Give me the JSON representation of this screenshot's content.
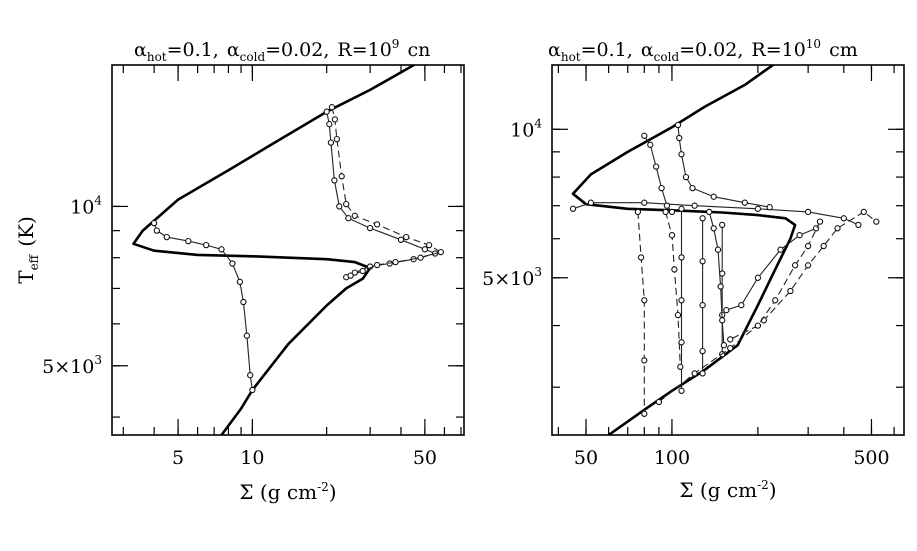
{
  "chart_data": [
    {
      "type": "line",
      "title": {
        "main": "α",
        "s1": "hot",
        "t1": "=0.1,",
        "g2": "α",
        "s2": "cold",
        "t2": "=0.02,",
        "t3": "R=10",
        "exp": "9",
        "unit": "cn"
      },
      "xlabel": "Σ (g cm",
      "xlabel_exp": "-2",
      "xlabel_close": ")",
      "ylabel": "T",
      "ylabel_sub": "eff",
      "ylabel_unit": "(K)",
      "xscale": "log",
      "yscale": "log",
      "xlim": [
        2.7,
        72
      ],
      "ylim": [
        3700,
        18500
      ],
      "xticks": [
        {
          "value": 5,
          "label": "5"
        },
        {
          "value": 10,
          "label": "10"
        },
        {
          "value": 50,
          "label": "50"
        }
      ],
      "yticks": [
        {
          "value": 10000,
          "label": "10",
          "exp": "4"
        },
        {
          "value": 5000,
          "label": "5×10",
          "exp": "3"
        }
      ],
      "series": [
        {
          "style": "thick",
          "points": [
            [
              7.5,
              3700
            ],
            [
              9,
              4150
            ],
            [
              10,
              4500
            ],
            [
              14,
              5500
            ],
            [
              20,
              6500
            ],
            [
              24,
              7000
            ],
            [
              28,
              7300
            ],
            [
              30,
              7650
            ],
            [
              26,
              7850
            ],
            [
              20,
              7950
            ],
            [
              10,
              8050
            ],
            [
              6,
              8100
            ],
            [
              4,
              8250
            ],
            [
              3.3,
              8500
            ],
            [
              3.6,
              9000
            ],
            [
              5,
              10300
            ],
            [
              8,
              11700
            ],
            [
              12,
              13100
            ],
            [
              20,
              15100
            ],
            [
              30,
              16600
            ],
            [
              55,
              19500
            ]
          ]
        },
        {
          "style": "thin",
          "points": [
            [
              20,
              15100
            ],
            [
              20.5,
              14300
            ],
            [
              20.8,
              13200
            ],
            [
              21.5,
              11200
            ],
            [
              22.5,
              10000
            ],
            [
              24.5,
              9500
            ],
            [
              30,
              9100
            ],
            [
              40,
              8650
            ],
            [
              50,
              8300
            ],
            [
              55,
              8150
            ],
            [
              45,
              7950
            ],
            [
              36,
              7800
            ],
            [
              30,
              7700
            ],
            [
              26,
              7500
            ],
            [
              24,
              7350
            ]
          ]
        },
        {
          "style": "dashed",
          "points": [
            [
              21,
              15400
            ],
            [
              21.6,
              14600
            ],
            [
              22,
              13400
            ],
            [
              23,
              11400
            ],
            [
              24,
              10100
            ],
            [
              26,
              9600
            ],
            [
              32,
              9250
            ],
            [
              42,
              8750
            ],
            [
              52,
              8450
            ],
            [
              58,
              8200
            ],
            [
              48,
              8000
            ],
            [
              38,
              7850
            ],
            [
              32,
              7750
            ],
            [
              28,
              7550
            ],
            [
              25,
              7400
            ]
          ]
        },
        {
          "style": "thin",
          "points": [
            [
              4,
              9300
            ],
            [
              4.1,
              9000
            ],
            [
              4.5,
              8750
            ],
            [
              5.5,
              8600
            ],
            [
              6.5,
              8450
            ],
            [
              7.5,
              8300
            ],
            [
              8.3,
              7800
            ],
            [
              8.9,
              7200
            ],
            [
              9.2,
              6600
            ],
            [
              9.5,
              5700
            ],
            [
              9.8,
              4800
            ],
            [
              10,
              4500
            ]
          ]
        }
      ]
    },
    {
      "type": "line",
      "title": {
        "main": "α",
        "s1": "hot",
        "t1": "=0.1,",
        "g2": "α",
        "s2": "cold",
        "t2": "=0.02,",
        "t3": "R=10",
        "exp": "10",
        "unit": "cm"
      },
      "xlabel": "Σ (g cm",
      "xlabel_exp": "-2",
      "xlabel_close": ")",
      "xscale": "log",
      "yscale": "log",
      "xlim": [
        38,
        650
      ],
      "ylim": [
        2400,
        13500
      ],
      "xticks": [
        {
          "value": 50,
          "label": "50"
        },
        {
          "value": 100,
          "label": "100"
        },
        {
          "value": 500,
          "label": "500"
        }
      ],
      "yticks": [
        {
          "value": 10000,
          "label": "10",
          "exp": "4"
        },
        {
          "value": 5000,
          "label": "5×10",
          "exp": "3"
        }
      ],
      "series": [
        {
          "style": "thick",
          "points": [
            [
              60,
              2400
            ],
            [
              80,
              2700
            ],
            [
              100,
              2950
            ],
            [
              130,
              3250
            ],
            [
              170,
              3650
            ],
            [
              200,
              4400
            ],
            [
              230,
              5200
            ],
            [
              260,
              6000
            ],
            [
              270,
              6400
            ],
            [
              250,
              6600
            ],
            [
              200,
              6700
            ],
            [
              150,
              6780
            ],
            [
              100,
              6850
            ],
            [
              70,
              6900
            ],
            [
              50,
              7050
            ],
            [
              45,
              7400
            ],
            [
              52,
              8100
            ],
            [
              70,
              9000
            ],
            [
              100,
              10100
            ],
            [
              130,
              11100
            ],
            [
              180,
              12300
            ],
            [
              230,
              13600
            ]
          ]
        },
        {
          "style": "thin",
          "points": [
            [
              45,
              6900
            ],
            [
              52,
              7100
            ],
            [
              80,
              7100
            ],
            [
              120,
              7000
            ],
            [
              200,
              6900
            ],
            [
              300,
              6800
            ],
            [
              400,
              6600
            ],
            [
              450,
              6400
            ]
          ]
        },
        {
          "style": "thin",
          "points": [
            [
              80,
              9700
            ],
            [
              84,
              9300
            ],
            [
              88,
              8400
            ],
            [
              92,
              7600
            ],
            [
              96,
              7000
            ],
            [
              100,
              6800
            ]
          ]
        },
        {
          "style": "thin",
          "points": [
            [
              105,
              10200
            ],
            [
              106,
              9600
            ],
            [
              108,
              8900
            ],
            [
              112,
              8000
            ],
            [
              118,
              7600
            ],
            [
              140,
              7300
            ],
            [
              180,
              7100
            ],
            [
              220,
              6950
            ]
          ]
        },
        {
          "style": "thin",
          "points": [
            [
              108,
              6900
            ],
            [
              108,
              5500
            ],
            [
              108,
              4500
            ],
            [
              108,
              3700
            ],
            [
              108,
              2950
            ]
          ]
        },
        {
          "style": "thin",
          "points": [
            [
              128,
              6600
            ],
            [
              128,
              5400
            ],
            [
              128,
              4400
            ],
            [
              128,
              3550
            ],
            [
              128,
              3200
            ]
          ]
        },
        {
          "style": "thin",
          "points": [
            [
              150,
              6400
            ],
            [
              150,
              5100
            ],
            [
              150,
              4200
            ],
            [
              150,
              3500
            ]
          ]
        },
        {
          "style": "dashed",
          "points": [
            [
              76,
              6800
            ],
            [
              78,
              5500
            ],
            [
              80,
              4500
            ],
            [
              80,
              3400
            ],
            [
              80,
              2650
            ]
          ]
        },
        {
          "style": "dashed",
          "points": [
            [
              95,
              6800
            ],
            [
              100,
              6100
            ],
            [
              102,
              5200
            ],
            [
              105,
              4200
            ],
            [
              107,
              3300
            ]
          ]
        },
        {
          "style": "thin",
          "points": [
            [
              135,
              6800
            ],
            [
              140,
              6300
            ],
            [
              145,
              5700
            ],
            [
              148,
              4800
            ],
            [
              150,
              4100
            ],
            [
              152,
              3650
            ]
          ]
        },
        {
          "style": "thin",
          "points": [
            [
              155,
              4300
            ],
            [
              175,
              4400
            ],
            [
              200,
              5000
            ],
            [
              240,
              5700
            ],
            [
              280,
              6100
            ],
            [
              320,
              6300
            ]
          ]
        },
        {
          "style": "dashed",
          "points": [
            [
              90,
              2800
            ],
            [
              120,
              3200
            ],
            [
              160,
              3600
            ],
            [
              210,
              4100
            ],
            [
              260,
              4700
            ],
            [
              300,
              5300
            ],
            [
              340,
              5800
            ],
            [
              380,
              6300
            ],
            [
              470,
              6800
            ],
            [
              520,
              6500
            ]
          ]
        },
        {
          "style": "dashed",
          "points": [
            [
              330,
              6500
            ],
            [
              300,
              5800
            ],
            [
              270,
              5300
            ],
            [
              230,
              4500
            ],
            [
              200,
              4000
            ],
            [
              160,
              3750
            ]
          ]
        }
      ]
    }
  ]
}
